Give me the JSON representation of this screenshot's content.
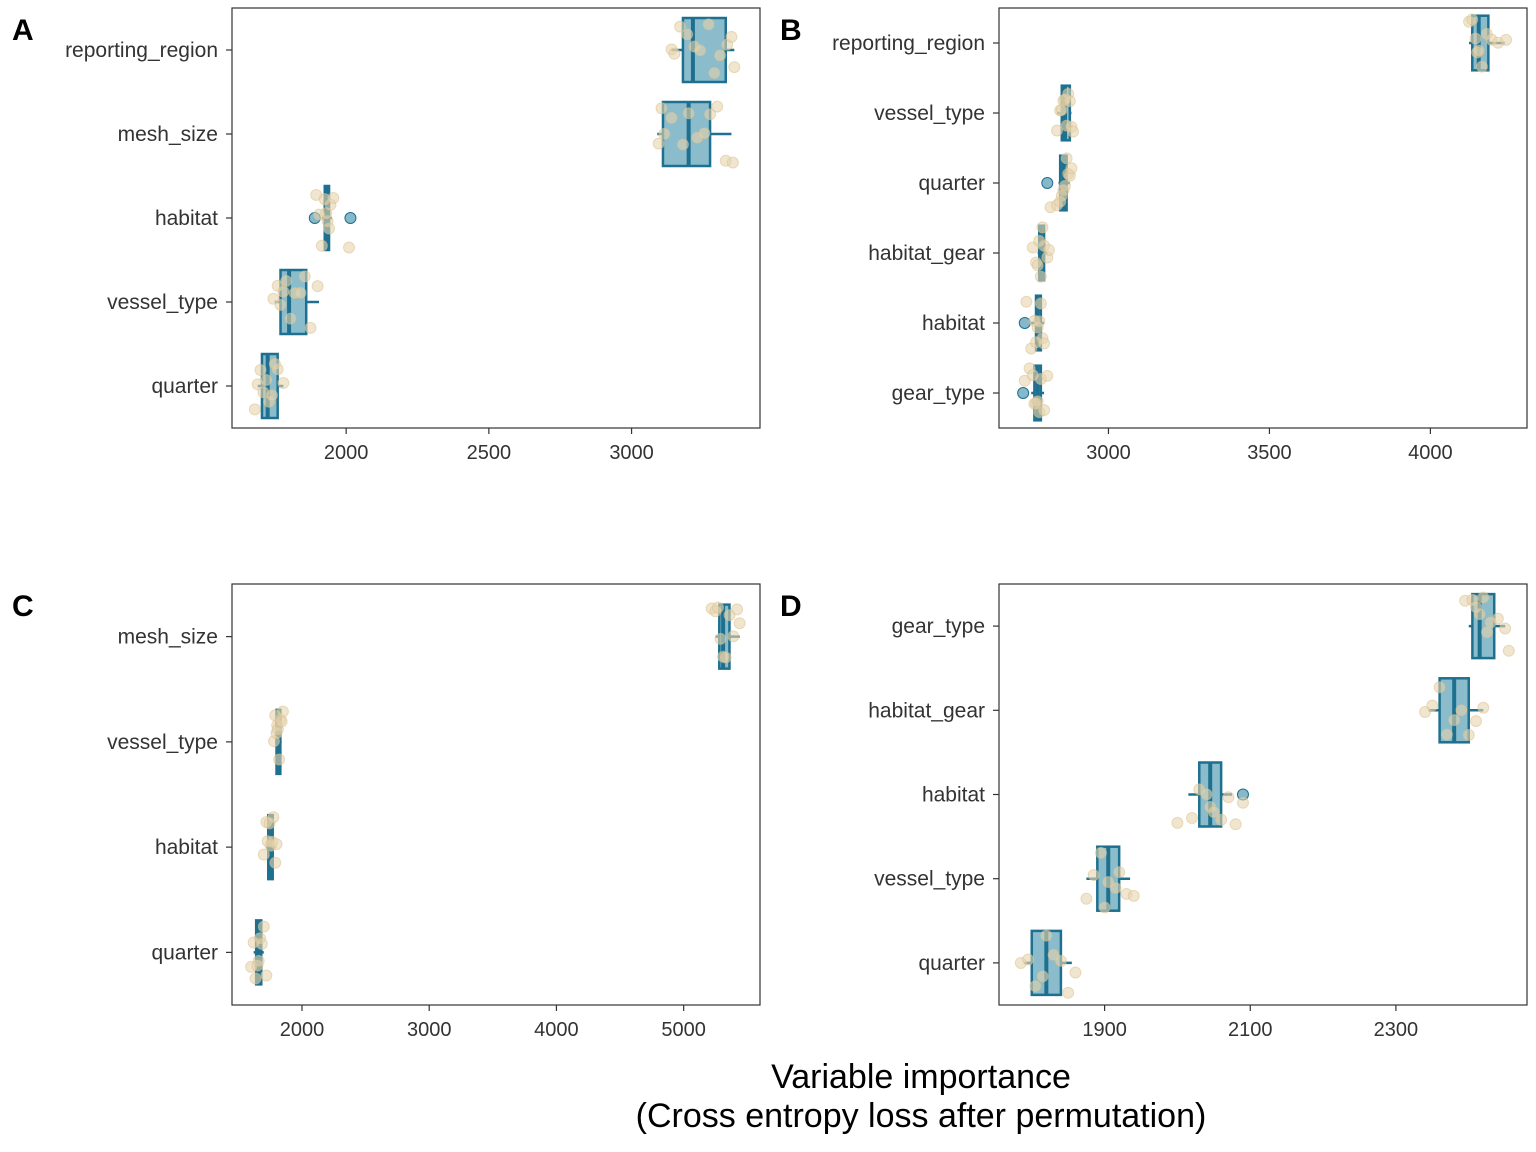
{
  "colors": {
    "box_fill": "#8BBCCC",
    "box_stroke": "#1E7090",
    "point_tan": "#E6D3AE",
    "point_blue": "#5FA0B8",
    "panel_border": "#333333"
  },
  "xlabel_line1": "Variable importance",
  "xlabel_line2": "(Cross entropy loss after permutation)",
  "chart_data": [
    {
      "panel": "A",
      "type": "boxplot",
      "orientation": "horizontal",
      "xlim": [
        1600,
        3450
      ],
      "xticks": [
        2000,
        2500,
        3000
      ],
      "categories": [
        "reporting_region",
        "mesh_size",
        "habitat",
        "vessel_type",
        "quarter"
      ],
      "boxes": [
        {
          "category": "reporting_region",
          "min": 3140,
          "q1": 3180,
          "median": 3215,
          "q3": 3330,
          "max": 3360,
          "outliers": []
        },
        {
          "category": "mesh_size",
          "min": 3090,
          "q1": 3110,
          "median": 3200,
          "q3": 3275,
          "max": 3350,
          "outliers": []
        },
        {
          "category": "habitat",
          "min": 1915,
          "q1": 1925,
          "median": 1930,
          "q3": 1940,
          "max": 1950,
          "outliers": [
            1890,
            2015
          ]
        },
        {
          "category": "vessel_type",
          "min": 1750,
          "q1": 1770,
          "median": 1800,
          "q3": 1860,
          "max": 1905,
          "outliers": []
        },
        {
          "category": "quarter",
          "min": 1690,
          "q1": 1705,
          "median": 1725,
          "q3": 1760,
          "max": 1780,
          "outliers": []
        }
      ],
      "points": [
        {
          "category": "reporting_region",
          "values": [
            3140,
            3150,
            3170,
            3195,
            3220,
            3240,
            3270,
            3290,
            3310,
            3335,
            3350,
            3360
          ]
        },
        {
          "category": "mesh_size",
          "values": [
            3095,
            3105,
            3115,
            3140,
            3180,
            3200,
            3230,
            3255,
            3275,
            3300,
            3330,
            3355
          ]
        },
        {
          "category": "habitat",
          "values": [
            1895,
            1905,
            1915,
            1925,
            1930,
            1935,
            1940,
            1945,
            1955,
            2010
          ]
        },
        {
          "category": "vessel_type",
          "values": [
            1745,
            1760,
            1770,
            1780,
            1790,
            1805,
            1820,
            1840,
            1855,
            1875,
            1900
          ]
        },
        {
          "category": "quarter",
          "values": [
            1680,
            1690,
            1700,
            1710,
            1720,
            1730,
            1740,
            1750,
            1760,
            1780
          ]
        }
      ]
    },
    {
      "panel": "B",
      "type": "boxplot",
      "orientation": "horizontal",
      "xlim": [
        2660,
        4300
      ],
      "xticks": [
        3000,
        3500,
        4000
      ],
      "categories": [
        "reporting_region",
        "vessel_type",
        "quarter",
        "habitat_gear",
        "habitat",
        "gear_type"
      ],
      "boxes": [
        {
          "category": "reporting_region",
          "min": 4120,
          "q1": 4130,
          "median": 4150,
          "q3": 4180,
          "max": 4230,
          "outliers": []
        },
        {
          "category": "vessel_type",
          "min": 2840,
          "q1": 2855,
          "median": 2865,
          "q3": 2880,
          "max": 2885,
          "outliers": []
        },
        {
          "category": "quarter",
          "min": 2845,
          "q1": 2850,
          "median": 2860,
          "q3": 2870,
          "max": 2880,
          "outliers": [
            2810
          ]
        },
        {
          "category": "habitat_gear",
          "min": 2780,
          "q1": 2785,
          "median": 2790,
          "q3": 2800,
          "max": 2810,
          "outliers": []
        },
        {
          "category": "habitat",
          "min": 2760,
          "q1": 2775,
          "median": 2780,
          "q3": 2790,
          "max": 2800,
          "outliers": [
            2740
          ]
        },
        {
          "category": "gear_type",
          "min": 2760,
          "q1": 2770,
          "median": 2780,
          "q3": 2790,
          "max": 2800,
          "outliers": [
            2735
          ]
        }
      ],
      "points": [
        {
          "category": "reporting_region",
          "values": [
            4120,
            4130,
            4140,
            4145,
            4150,
            4160,
            4175,
            4190,
            4210,
            4235
          ]
        },
        {
          "category": "vessel_type",
          "values": [
            2840,
            2850,
            2855,
            2860,
            2865,
            2870,
            2875,
            2880,
            2885,
            2890
          ]
        },
        {
          "category": "quarter",
          "values": [
            2820,
            2840,
            2850,
            2855,
            2860,
            2865,
            2870,
            2875,
            2880,
            2885
          ]
        },
        {
          "category": "habitat_gear",
          "values": [
            2765,
            2775,
            2780,
            2785,
            2790,
            2795,
            2800,
            2810,
            2815
          ]
        },
        {
          "category": "habitat",
          "values": [
            2745,
            2760,
            2770,
            2775,
            2780,
            2785,
            2790,
            2795,
            2800
          ]
        },
        {
          "category": "gear_type",
          "values": [
            2740,
            2755,
            2765,
            2770,
            2775,
            2780,
            2785,
            2790,
            2800,
            2810
          ]
        }
      ]
    },
    {
      "panel": "C",
      "type": "boxplot",
      "orientation": "horizontal",
      "xlim": [
        1450,
        5600
      ],
      "xticks": [
        2000,
        3000,
        4000,
        5000
      ],
      "categories": [
        "mesh_size",
        "vessel_type",
        "habitat",
        "quarter"
      ],
      "boxes": [
        {
          "category": "mesh_size",
          "min": 5250,
          "q1": 5280,
          "median": 5310,
          "q3": 5360,
          "max": 5440,
          "outliers": []
        },
        {
          "category": "vessel_type",
          "min": 1790,
          "q1": 1800,
          "median": 1810,
          "q3": 1830,
          "max": 1840,
          "outliers": []
        },
        {
          "category": "habitat",
          "min": 1720,
          "q1": 1735,
          "median": 1750,
          "q3": 1770,
          "max": 1790,
          "outliers": []
        },
        {
          "category": "quarter",
          "min": 1620,
          "q1": 1640,
          "median": 1660,
          "q3": 1680,
          "max": 1700,
          "outliers": []
        }
      ],
      "points": [
        {
          "category": "mesh_size",
          "values": [
            5220,
            5250,
            5270,
            5290,
            5310,
            5330,
            5360,
            5390,
            5420,
            5440
          ]
        },
        {
          "category": "vessel_type",
          "values": [
            1780,
            1790,
            1800,
            1805,
            1810,
            1820,
            1830,
            1840,
            1850
          ]
        },
        {
          "category": "habitat",
          "values": [
            1700,
            1720,
            1730,
            1745,
            1755,
            1765,
            1775,
            1790,
            1800
          ]
        },
        {
          "category": "quarter",
          "values": [
            1600,
            1620,
            1635,
            1650,
            1660,
            1670,
            1685,
            1700,
            1720
          ]
        }
      ]
    },
    {
      "panel": "D",
      "type": "boxplot",
      "orientation": "horizontal",
      "xlim": [
        1755,
        2480
      ],
      "xticks": [
        1900,
        2100,
        2300
      ],
      "categories": [
        "gear_type",
        "habitat_gear",
        "habitat",
        "vessel_type",
        "quarter"
      ],
      "boxes": [
        {
          "category": "gear_type",
          "min": 2400,
          "q1": 2405,
          "median": 2415,
          "q3": 2435,
          "max": 2450,
          "outliers": []
        },
        {
          "category": "habitat_gear",
          "min": 2345,
          "q1": 2360,
          "median": 2380,
          "q3": 2400,
          "max": 2420,
          "outliers": []
        },
        {
          "category": "habitat",
          "min": 2015,
          "q1": 2030,
          "median": 2045,
          "q3": 2060,
          "max": 2075,
          "outliers": [
            2090
          ]
        },
        {
          "category": "vessel_type",
          "min": 1875,
          "q1": 1890,
          "median": 1905,
          "q3": 1920,
          "max": 1935,
          "outliers": []
        },
        {
          "category": "quarter",
          "min": 1790,
          "q1": 1800,
          "median": 1820,
          "q3": 1840,
          "max": 1855,
          "outliers": []
        }
      ],
      "points": [
        {
          "category": "gear_type",
          "values": [
            2395,
            2405,
            2410,
            2415,
            2420,
            2425,
            2430,
            2440,
            2450,
            2455
          ]
        },
        {
          "category": "habitat_gear",
          "values": [
            2340,
            2350,
            2360,
            2370,
            2380,
            2390,
            2400,
            2410,
            2420
          ]
        },
        {
          "category": "habitat",
          "values": [
            2000,
            2020,
            2030,
            2040,
            2045,
            2050,
            2060,
            2070,
            2080,
            2090
          ]
        },
        {
          "category": "vessel_type",
          "values": [
            1875,
            1885,
            1895,
            1900,
            1905,
            1915,
            1920,
            1930,
            1940
          ]
        },
        {
          "category": "quarter",
          "values": [
            1785,
            1795,
            1805,
            1815,
            1820,
            1830,
            1840,
            1850,
            1860
          ]
        }
      ]
    }
  ]
}
